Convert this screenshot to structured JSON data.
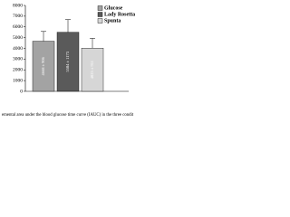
{
  "chart_data": {
    "type": "bar",
    "caption": "emental area under the blood glucose time curve (IAUC) in the three condit",
    "series": [
      {
        "name": "Glucose",
        "color": "#a3a3a3",
        "values": [
          4668
        ],
        "errors": [
          906
        ],
        "value_labels": [
          "4668 ± 906"
        ]
      },
      {
        "name": "Lady Rosetta",
        "color": "#5a5a5a",
        "values": [
          5504
        ],
        "errors": [
          1173
        ],
        "value_labels": [
          "5504 ± 1173"
        ]
      },
      {
        "name": "Spunta",
        "color": "#d6d6d6",
        "values": [
          4025
        ],
        "errors": [
          911
        ],
        "value_labels": [
          "4025 ± 911"
        ]
      }
    ],
    "ylim": [
      0,
      8000
    ],
    "yticks": [
      0,
      1000,
      2000,
      3000,
      4000,
      5000,
      6000,
      7000,
      8000
    ],
    "legend": "upper right"
  }
}
